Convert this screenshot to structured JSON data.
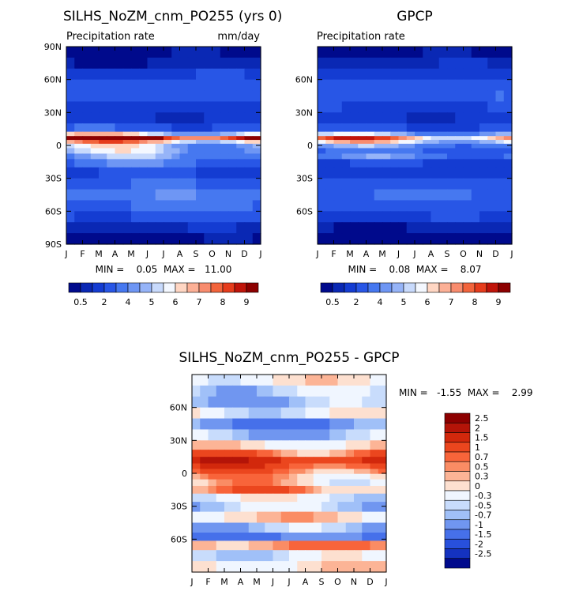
{
  "chart_data": [
    {
      "type": "heatmap",
      "title": "SILHS_NoZM_cnm_PO255 (yrs 0)",
      "subtitle": "Precipitation rate",
      "units": "mm/day",
      "x_tick_labels": [
        "J",
        "F",
        "M",
        "A",
        "M",
        "J",
        "J",
        "A",
        "S",
        "O",
        "N",
        "D",
        "J"
      ],
      "y_tick_labels": [
        {
          "label": "90N",
          "lat": 90
        },
        {
          "label": "60N",
          "lat": 60
        },
        {
          "label": "30N",
          "lat": 30
        },
        {
          "label": "0",
          "lat": 0
        },
        {
          "label": "30S",
          "lat": -30
        },
        {
          "label": "60S",
          "lat": -60
        },
        {
          "label": "90S",
          "lat": -90
        }
      ],
      "ylim": [
        -90,
        90
      ],
      "stats_text": "MIN =    0.05  MAX =   11.00",
      "min": 0.05,
      "max": 11.0,
      "colorbar_labels": [
        "0.5",
        "2",
        "4",
        "5",
        "6",
        "7",
        "8",
        "9"
      ],
      "bands": [
        {
          "lat": 85,
          "value": 0.3
        },
        {
          "lat": 75,
          "value": 0.6
        },
        {
          "lat": 65,
          "value": 1.8
        },
        {
          "lat": 55,
          "value": 2.6
        },
        {
          "lat": 45,
          "value": 2.4
        },
        {
          "lat": 35,
          "value": 1.6
        },
        {
          "lat": 25,
          "value": 1.2
        },
        {
          "lat": 15,
          "value": 2.5
        },
        {
          "lat": 10,
          "value": 5.5
        },
        {
          "lat": 7,
          "value": 9.5
        },
        {
          "lat": 3,
          "value": 6.5
        },
        {
          "lat": 0,
          "value": 5.0
        },
        {
          "lat": -5,
          "value": 4.8
        },
        {
          "lat": -10,
          "value": 4.2
        },
        {
          "lat": -15,
          "value": 3.4
        },
        {
          "lat": -25,
          "value": 2.0
        },
        {
          "lat": -35,
          "value": 2.8
        },
        {
          "lat": -45,
          "value": 3.6
        },
        {
          "lat": -55,
          "value": 3.2
        },
        {
          "lat": -65,
          "value": 2.2
        },
        {
          "lat": -75,
          "value": 0.8
        },
        {
          "lat": -85,
          "value": 0.3
        }
      ]
    },
    {
      "type": "heatmap",
      "title": "GPCP",
      "subtitle": "Precipitation rate",
      "x_tick_labels": [
        "J",
        "F",
        "M",
        "A",
        "M",
        "J",
        "J",
        "A",
        "S",
        "O",
        "N",
        "D",
        "J"
      ],
      "y_tick_labels": [
        {
          "label": "60N",
          "lat": 60
        },
        {
          "label": "30N",
          "lat": 30
        },
        {
          "label": "0",
          "lat": 0
        },
        {
          "label": "30S",
          "lat": -30
        },
        {
          "label": "60S",
          "lat": -60
        }
      ],
      "ylim": [
        -90,
        90
      ],
      "stats_text": "MIN =    0.08  MAX =    8.07",
      "min": 0.08,
      "max": 8.07,
      "colorbar_labels": [
        "0.5",
        "2",
        "4",
        "5",
        "6",
        "7",
        "8",
        "9"
      ],
      "bands": [
        {
          "lat": 85,
          "value": 0.3
        },
        {
          "lat": 75,
          "value": 0.8
        },
        {
          "lat": 65,
          "value": 1.6
        },
        {
          "lat": 55,
          "value": 2.4
        },
        {
          "lat": 45,
          "value": 2.6
        },
        {
          "lat": 35,
          "value": 1.8
        },
        {
          "lat": 25,
          "value": 1.2
        },
        {
          "lat": 15,
          "value": 2.2
        },
        {
          "lat": 10,
          "value": 4.6
        },
        {
          "lat": 7,
          "value": 7.0
        },
        {
          "lat": 3,
          "value": 5.6
        },
        {
          "lat": 0,
          "value": 4.0
        },
        {
          "lat": -5,
          "value": 3.0
        },
        {
          "lat": -10,
          "value": 3.6
        },
        {
          "lat": -15,
          "value": 1.8
        },
        {
          "lat": -25,
          "value": 1.4
        },
        {
          "lat": -35,
          "value": 2.4
        },
        {
          "lat": -45,
          "value": 3.0
        },
        {
          "lat": -55,
          "value": 2.6
        },
        {
          "lat": -65,
          "value": 1.8
        },
        {
          "lat": -75,
          "value": 0.6
        },
        {
          "lat": -85,
          "value": 0.2
        }
      ]
    },
    {
      "type": "heatmap",
      "title": "SILHS_NoZM_cnm_PO255 - GPCP",
      "x_tick_labels": [
        "J",
        "F",
        "M",
        "A",
        "M",
        "J",
        "J",
        "A",
        "S",
        "O",
        "N",
        "D",
        "J"
      ],
      "y_tick_labels": [
        {
          "label": "60N",
          "lat": 60
        },
        {
          "label": "30N",
          "lat": 30
        },
        {
          "label": "0",
          "lat": 0
        },
        {
          "label": "30S",
          "lat": -30
        },
        {
          "label": "60S",
          "lat": -60
        }
      ],
      "ylim": [
        -90,
        90
      ],
      "stats_text": "MIN =   -1.55  MAX =    2.99",
      "min": -1.55,
      "max": 2.99,
      "colorbar_labels": [
        "2.5",
        "2",
        "1.5",
        "1",
        "0.7",
        "0.5",
        "0.3",
        "0",
        "-0.3",
        "-0.5",
        "-0.7",
        "-1",
        "-1.5",
        "-2",
        "-2.5"
      ],
      "bands": [
        {
          "lat": 85,
          "value": 0.0
        },
        {
          "lat": 75,
          "value": -0.4
        },
        {
          "lat": 65,
          "value": -0.6
        },
        {
          "lat": 55,
          "value": -0.2
        },
        {
          "lat": 45,
          "value": -1.0
        },
        {
          "lat": 35,
          "value": -0.6
        },
        {
          "lat": 25,
          "value": 0.1
        },
        {
          "lat": 18,
          "value": 0.8
        },
        {
          "lat": 12,
          "value": 1.6
        },
        {
          "lat": 6,
          "value": 1.2
        },
        {
          "lat": 2,
          "value": 0.8
        },
        {
          "lat": -3,
          "value": 0.4
        },
        {
          "lat": -8,
          "value": 0.2
        },
        {
          "lat": -15,
          "value": 0.6
        },
        {
          "lat": -22,
          "value": -0.2
        },
        {
          "lat": -30,
          "value": -0.4
        },
        {
          "lat": -40,
          "value": 0.2
        },
        {
          "lat": -50,
          "value": -0.6
        },
        {
          "lat": -58,
          "value": -1.1
        },
        {
          "lat": -65,
          "value": 0.6
        },
        {
          "lat": -75,
          "value": -0.3
        },
        {
          "lat": -85,
          "value": 0.1
        }
      ]
    }
  ],
  "palettes": {
    "precip": [
      "#000a8c",
      "#0a28b4",
      "#143cd2",
      "#2856e6",
      "#4678f0",
      "#6e96f4",
      "#96b4f8",
      "#c8dafc",
      "#f4f8ff",
      "#ffd6c3",
      "#fcb096",
      "#f88c6e",
      "#f2643c",
      "#e63c1c",
      "#c0140a",
      "#8c0000"
    ],
    "diff": [
      "#8c0000",
      "#b41408",
      "#d2280c",
      "#eb461e",
      "#f8643a",
      "#fa8c64",
      "#fcb496",
      "#fde0d0",
      "#f0f6ff",
      "#c8dcfc",
      "#a0c0f8",
      "#7096f0",
      "#4670ea",
      "#2850dc",
      "#1432c0",
      "#000a8c"
    ]
  }
}
